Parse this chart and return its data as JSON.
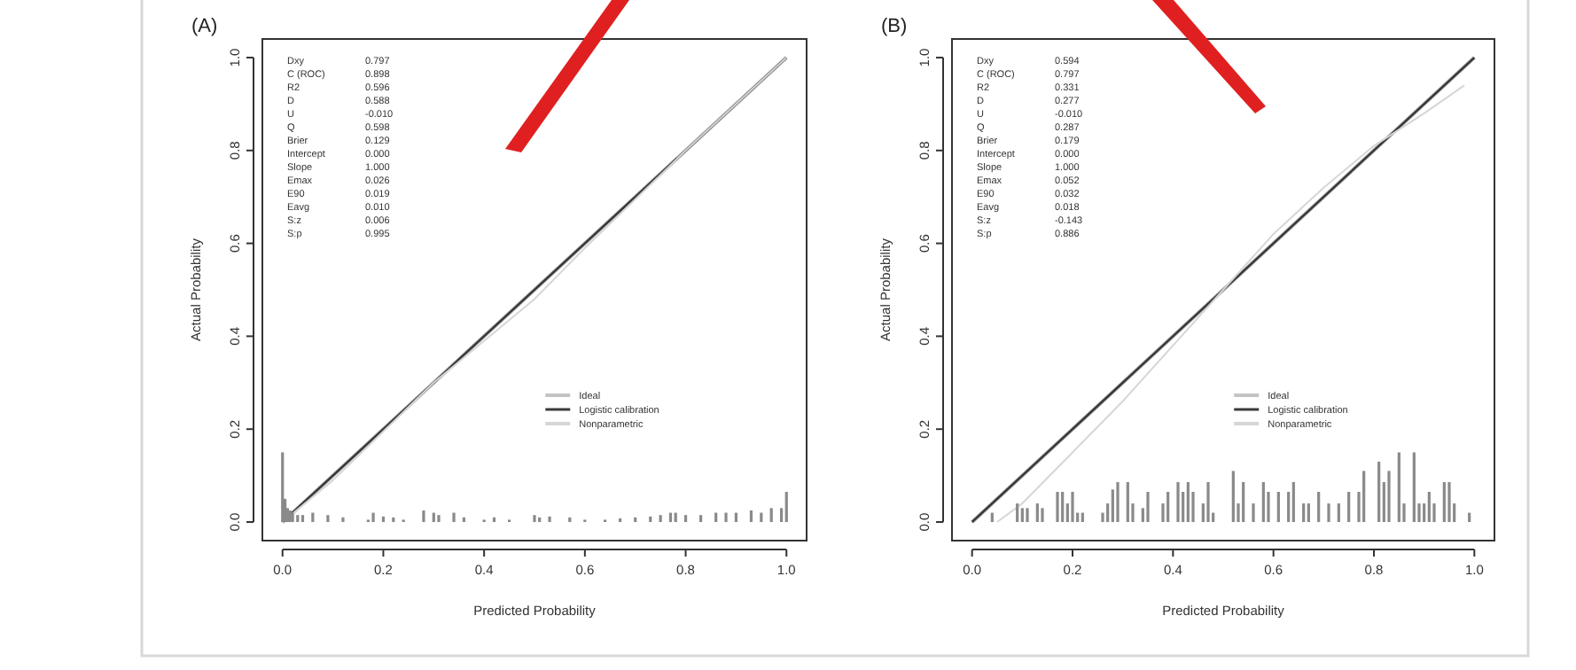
{
  "chart_data": [
    {
      "type": "line",
      "title": "(A)",
      "xlabel": "Predicted Probability",
      "ylabel": "Actual Probability",
      "xlim": [
        -0.04,
        1.04
      ],
      "ylim": [
        -0.04,
        1.04
      ],
      "xticks": [
        {
          "value": 0,
          "label": "0.0"
        },
        {
          "value": 0.2,
          "label": "0.2"
        },
        {
          "value": 0.4,
          "label": "0.4"
        },
        {
          "value": 0.6,
          "label": "0.6"
        },
        {
          "value": 0.8,
          "label": "0.8"
        },
        {
          "value": 1,
          "label": "1.0"
        }
      ],
      "yticks": [
        {
          "value": 0,
          "label": "0.0"
        },
        {
          "value": 0.2,
          "label": "0.2"
        },
        {
          "value": 0.4,
          "label": "0.4"
        },
        {
          "value": 0.6,
          "label": "0.6"
        },
        {
          "value": 0.8,
          "label": "0.8"
        },
        {
          "value": 1,
          "label": "1.0"
        }
      ],
      "legend": "bottom right",
      "annotations": [
        "Dxy 0.797",
        "C (ROC) 0.898",
        "R2 0.596",
        "D 0.588",
        "U -0.010",
        "Q 0.598",
        "Brier 0.129",
        "Intercept 0.000",
        "Slope 1.000",
        "Emax 0.026",
        "E90 0.019",
        "Eavg 0.010",
        "S:z 0.006",
        "S:p 0.995"
      ],
      "series": [
        {
          "name": "Ideal",
          "color": "#c4c4c4",
          "x": [
            0,
            1
          ],
          "values": [
            0,
            1
          ]
        },
        {
          "name": "Logistic calibration",
          "color": "#3a3a3a",
          "x": [
            0,
            1
          ],
          "values": [
            0,
            1
          ]
        },
        {
          "name": "Nonparametric",
          "color": "#d6d6d6",
          "x": [
            0,
            0.1,
            0.3,
            0.5,
            0.6,
            0.8,
            1
          ],
          "values": [
            0,
            0.09,
            0.3,
            0.48,
            0.59,
            0.8,
            1
          ]
        },
        {
          "type": "bar",
          "color": "#8a8a8a",
          "x": [
            0,
            0.005,
            0.01,
            0.015,
            0.02,
            0.03,
            0.04,
            0.06,
            0.09,
            0.12,
            0.17,
            0.18,
            0.2,
            0.22,
            0.24,
            0.28,
            0.3,
            0.31,
            0.34,
            0.36,
            0.4,
            0.42,
            0.45,
            0.5,
            0.51,
            0.53,
            0.57,
            0.6,
            0.64,
            0.67,
            0.7,
            0.73,
            0.75,
            0.77,
            0.78,
            0.8,
            0.83,
            0.86,
            0.88,
            0.9,
            0.93,
            0.95,
            0.97,
            0.99,
            1
          ],
          "values": [
            0.15,
            0.05,
            0.03,
            0.025,
            0.02,
            0.015,
            0.015,
            0.02,
            0.015,
            0.01,
            0.005,
            0.02,
            0.012,
            0.01,
            0.005,
            0.025,
            0.02,
            0.015,
            0.02,
            0.01,
            0.005,
            0.01,
            0.005,
            0.015,
            0.01,
            0.012,
            0.01,
            0.005,
            0.005,
            0.008,
            0.01,
            0.012,
            0.015,
            0.02,
            0.02,
            0.015,
            0.015,
            0.02,
            0.02,
            0.02,
            0.025,
            0.02,
            0.03,
            0.03,
            0.065
          ]
        }
      ]
    },
    {
      "type": "line",
      "title": "(B)",
      "xlabel": "Predicted Probability",
      "ylabel": "Actual Probability",
      "xlim": [
        -0.04,
        1.04
      ],
      "ylim": [
        -0.04,
        1.04
      ],
      "xticks": [
        {
          "value": 0,
          "label": "0.0"
        },
        {
          "value": 0.2,
          "label": "0.2"
        },
        {
          "value": 0.4,
          "label": "0.4"
        },
        {
          "value": 0.6,
          "label": "0.6"
        },
        {
          "value": 0.8,
          "label": "0.8"
        },
        {
          "value": 1,
          "label": "1.0"
        }
      ],
      "yticks": [
        {
          "value": 0,
          "label": "0.0"
        },
        {
          "value": 0.2,
          "label": "0.2"
        },
        {
          "value": 0.4,
          "label": "0.4"
        },
        {
          "value": 0.6,
          "label": "0.6"
        },
        {
          "value": 0.8,
          "label": "0.8"
        },
        {
          "value": 1,
          "label": "1.0"
        }
      ],
      "legend": "bottom right",
      "annotations": [
        "Dxy 0.594",
        "C (ROC) 0.797",
        "R2 0.331",
        "D 0.277",
        "U -0.010",
        "Q 0.287",
        "Brier 0.179",
        "Intercept 0.000",
        "Slope 1.000",
        "Emax 0.052",
        "E90 0.032",
        "Eavg 0.018",
        "S:z -0.143",
        "S:p 0.886"
      ],
      "series": [
        {
          "name": "Ideal",
          "color": "#c4c4c4",
          "x": [
            0,
            1
          ],
          "values": [
            0,
            1
          ]
        },
        {
          "name": "Logistic calibration",
          "color": "#3a3a3a",
          "x": [
            0,
            1
          ],
          "values": [
            0,
            1
          ]
        },
        {
          "name": "Nonparametric",
          "color": "#d6d6d6",
          "x": [
            0.05,
            0.1,
            0.2,
            0.3,
            0.4,
            0.5,
            0.6,
            0.7,
            0.8,
            0.9,
            0.98
          ],
          "values": [
            0,
            0.04,
            0.15,
            0.26,
            0.38,
            0.5,
            0.62,
            0.72,
            0.81,
            0.88,
            0.94
          ]
        },
        {
          "type": "bar",
          "color": "#8a8a8a",
          "x": [
            0.04,
            0.09,
            0.1,
            0.11,
            0.13,
            0.14,
            0.17,
            0.18,
            0.19,
            0.2,
            0.21,
            0.22,
            0.26,
            0.27,
            0.28,
            0.29,
            0.31,
            0.32,
            0.34,
            0.35,
            0.38,
            0.39,
            0.41,
            0.42,
            0.43,
            0.44,
            0.46,
            0.47,
            0.48,
            0.52,
            0.53,
            0.54,
            0.56,
            0.58,
            0.59,
            0.61,
            0.63,
            0.64,
            0.66,
            0.67,
            0.69,
            0.71,
            0.73,
            0.75,
            0.77,
            0.78,
            0.81,
            0.82,
            0.83,
            0.85,
            0.86,
            0.88,
            0.89,
            0.9,
            0.91,
            0.92,
            0.94,
            0.95,
            0.96,
            0.99
          ],
          "values": [
            0.02,
            0.04,
            0.03,
            0.03,
            0.04,
            0.03,
            0.065,
            0.065,
            0.04,
            0.065,
            0.02,
            0.02,
            0.02,
            0.04,
            0.07,
            0.086,
            0.086,
            0.04,
            0.03,
            0.065,
            0.04,
            0.065,
            0.086,
            0.065,
            0.086,
            0.065,
            0.04,
            0.086,
            0.02,
            0.11,
            0.04,
            0.086,
            0.04,
            0.086,
            0.065,
            0.065,
            0.065,
            0.086,
            0.04,
            0.04,
            0.065,
            0.04,
            0.04,
            0.065,
            0.065,
            0.11,
            0.13,
            0.086,
            0.11,
            0.15,
            0.04,
            0.15,
            0.04,
            0.04,
            0.065,
            0.04,
            0.086,
            0.086,
            0.04,
            0.02
          ]
        }
      ]
    }
  ]
}
